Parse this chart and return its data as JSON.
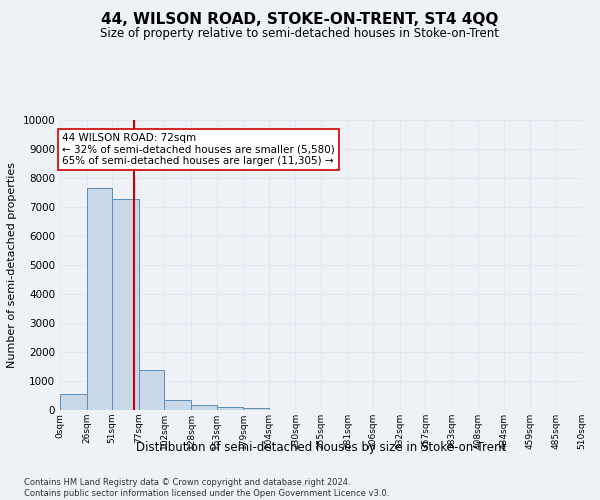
{
  "title": "44, WILSON ROAD, STOKE-ON-TRENT, ST4 4QQ",
  "subtitle": "Size of property relative to semi-detached houses in Stoke-on-Trent",
  "xlabel": "Distribution of semi-detached houses by size in Stoke-on-Trent",
  "ylabel": "Number of semi-detached properties",
  "footnote": "Contains HM Land Registry data © Crown copyright and database right 2024.\nContains public sector information licensed under the Open Government Licence v3.0.",
  "bar_edges": [
    0,
    26,
    51,
    77,
    102,
    128,
    153,
    179,
    204,
    230,
    255,
    281,
    306,
    332,
    357,
    383,
    408,
    434,
    459,
    485,
    510
  ],
  "bar_heights": [
    550,
    7650,
    7280,
    1380,
    330,
    160,
    105,
    80,
    0,
    0,
    0,
    0,
    0,
    0,
    0,
    0,
    0,
    0,
    0,
    0
  ],
  "bar_color": "#c8d8e8",
  "bar_edge_color": "#5b8db8",
  "property_size": 72,
  "vline_color": "#cc0000",
  "annotation_text": "44 WILSON ROAD: 72sqm\n← 32% of semi-detached houses are smaller (5,580)\n65% of semi-detached houses are larger (11,305) →",
  "annotation_box_color": "#ffffff",
  "annotation_box_edge": "#cc0000",
  "ylim": [
    0,
    10000
  ],
  "yticks": [
    0,
    1000,
    2000,
    3000,
    4000,
    5000,
    6000,
    7000,
    8000,
    9000,
    10000
  ],
  "xtick_labels": [
    "0sqm",
    "26sqm",
    "51sqm",
    "77sqm",
    "102sqm",
    "128sqm",
    "153sqm",
    "179sqm",
    "204sqm",
    "230sqm",
    "255sqm",
    "281sqm",
    "306sqm",
    "332sqm",
    "357sqm",
    "383sqm",
    "408sqm",
    "434sqm",
    "459sqm",
    "485sqm",
    "510sqm"
  ],
  "grid_color": "#dce8f0",
  "background_color": "#eef2f7"
}
